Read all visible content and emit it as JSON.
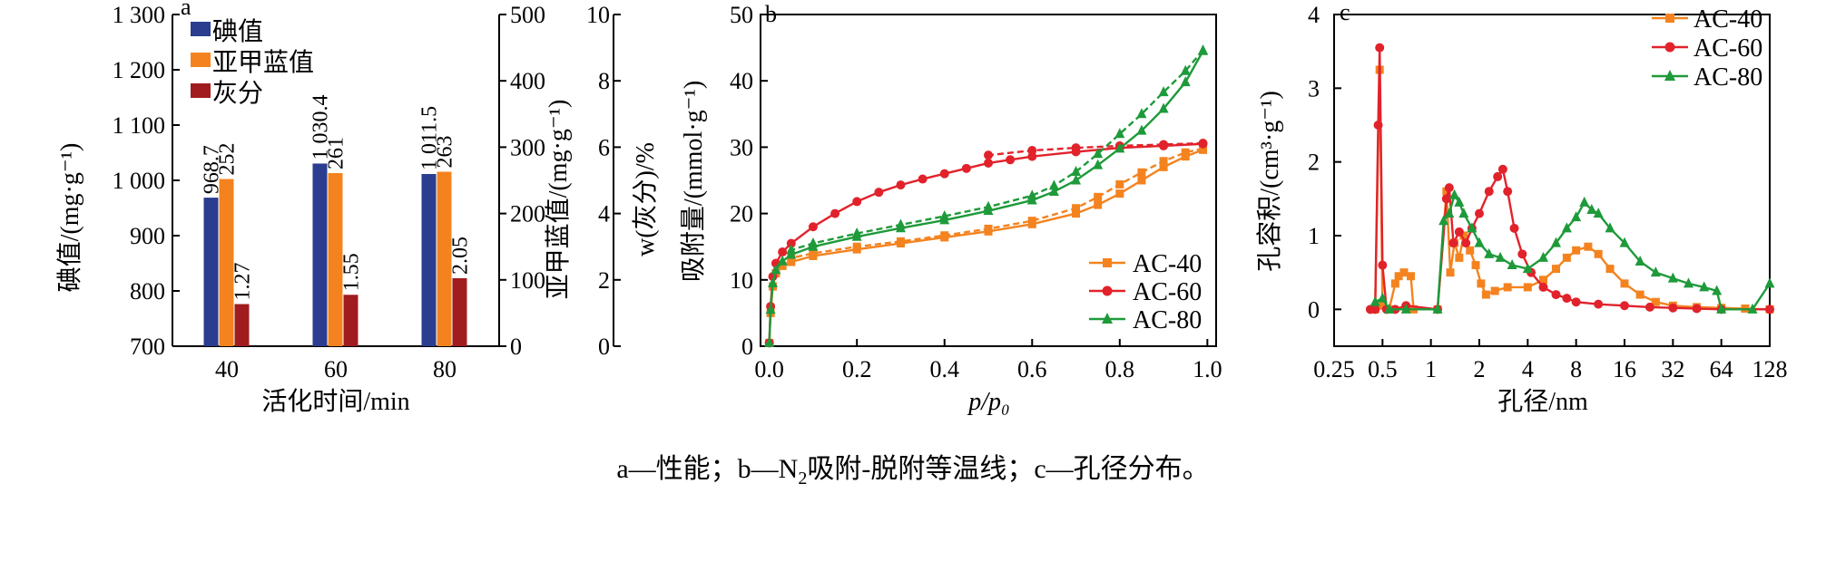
{
  "caption": {
    "part_a": "a—性能；b—N",
    "sub": "2",
    "part_b": "吸附-脱附等温线；c—孔径分布。"
  },
  "chart_data": [
    {
      "panel": "a",
      "type": "bar",
      "xlabel": "活化时间/min",
      "categories": [
        "40",
        "60",
        "80"
      ],
      "legend_position": "top-left",
      "series": [
        {
          "name": "碘值",
          "values": [
            968.7,
            1030.4,
            1011.5
          ],
          "labels": [
            "968.7",
            "1 030.4",
            "1 011.5"
          ],
          "axis": "y1",
          "color": "#2a3d8f"
        },
        {
          "name": "亚甲蓝值",
          "values": [
            252,
            261,
            263
          ],
          "labels": [
            "252",
            "261",
            "263"
          ],
          "axis": "y2",
          "color": "#f4831f"
        },
        {
          "name": "灰分",
          "values": [
            1.27,
            1.55,
            2.05
          ],
          "labels": [
            "1.27",
            "1.55",
            "2.05"
          ],
          "axis": "y3",
          "color": "#a01c1f"
        }
      ],
      "axes": {
        "y1": {
          "label": "碘值/(mg·g⁻¹)",
          "range": [
            700,
            1300
          ],
          "ticks": [
            700,
            800,
            900,
            1000,
            1100,
            1200,
            1300
          ],
          "tick_labels": [
            "700",
            "800",
            "900",
            "1 000",
            "1 100",
            "1 200",
            "1 300"
          ]
        },
        "y2": {
          "label": "亚甲蓝值/(mg·g⁻¹)",
          "range": [
            0,
            500
          ],
          "ticks": [
            0,
            100,
            200,
            300,
            400,
            500
          ],
          "tick_labels": [
            "0",
            "100",
            "200",
            "300",
            "400",
            "500"
          ]
        },
        "y3": {
          "label": "w(灰分)/%",
          "range": [
            0,
            10
          ],
          "ticks": [
            0,
            2,
            4,
            6,
            8,
            10
          ],
          "tick_labels": [
            "0",
            "2",
            "4",
            "6",
            "8",
            "10"
          ]
        }
      }
    },
    {
      "panel": "b",
      "type": "line",
      "xlabel": "p/p₀",
      "ylabel": "吸附量/(mmol·g⁻¹)",
      "xlim": [
        -0.02,
        1.02
      ],
      "ylim": [
        0,
        50
      ],
      "xticks": [
        0.0,
        0.2,
        0.4,
        0.6,
        0.8,
        1.0
      ],
      "xtick_labels": [
        "0.0",
        "0.2",
        "0.4",
        "0.6",
        "0.8",
        "1.0"
      ],
      "yticks": [
        0,
        10,
        20,
        30,
        40,
        50
      ],
      "ytick_labels": [
        "0",
        "10",
        "20",
        "30",
        "40",
        "50"
      ],
      "legend_position": "bottom-right",
      "series": [
        {
          "name": "AC-40",
          "color": "#f4831f",
          "marker": "square",
          "adsorption": [
            [
              0.0,
              0.5
            ],
            [
              0.003,
              5
            ],
            [
              0.008,
              9
            ],
            [
              0.015,
              11
            ],
            [
              0.03,
              12.1
            ],
            [
              0.05,
              12.7
            ],
            [
              0.1,
              13.6
            ],
            [
              0.2,
              14.6
            ],
            [
              0.3,
              15.5
            ],
            [
              0.4,
              16.4
            ],
            [
              0.5,
              17.3
            ],
            [
              0.6,
              18.4
            ],
            [
              0.7,
              20.0
            ],
            [
              0.75,
              21.3
            ],
            [
              0.8,
              23.0
            ],
            [
              0.85,
              25.0
            ],
            [
              0.9,
              27.0
            ],
            [
              0.95,
              28.6
            ],
            [
              0.99,
              29.6
            ]
          ],
          "desorption": [
            [
              0.99,
              29.8
            ],
            [
              0.95,
              29.2
            ],
            [
              0.9,
              27.9
            ],
            [
              0.85,
              26.2
            ],
            [
              0.8,
              24.4
            ],
            [
              0.75,
              22.5
            ],
            [
              0.7,
              20.8
            ],
            [
              0.6,
              18.9
            ],
            [
              0.5,
              17.7
            ],
            [
              0.4,
              16.7
            ],
            [
              0.3,
              15.8
            ],
            [
              0.2,
              15.0
            ],
            [
              0.1,
              14.0
            ],
            [
              0.05,
              13.3
            ]
          ]
        },
        {
          "name": "AC-60",
          "color": "#e2222b",
          "marker": "circle",
          "adsorption": [
            [
              0.0,
              0.5
            ],
            [
              0.003,
              6
            ],
            [
              0.008,
              10.5
            ],
            [
              0.015,
              12.5
            ],
            [
              0.03,
              14.2
            ],
            [
              0.05,
              15.5
            ],
            [
              0.1,
              18.0
            ],
            [
              0.15,
              20.0
            ],
            [
              0.2,
              21.8
            ],
            [
              0.25,
              23.2
            ],
            [
              0.3,
              24.3
            ],
            [
              0.35,
              25.2
            ],
            [
              0.4,
              26.0
            ],
            [
              0.45,
              26.8
            ],
            [
              0.5,
              27.6
            ],
            [
              0.55,
              28.1
            ],
            [
              0.6,
              28.6
            ],
            [
              0.7,
              29.3
            ],
            [
              0.8,
              29.9
            ],
            [
              0.9,
              30.2
            ],
            [
              0.99,
              30.5
            ]
          ],
          "desorption": [
            [
              0.99,
              30.6
            ],
            [
              0.9,
              30.4
            ],
            [
              0.8,
              30.2
            ],
            [
              0.7,
              29.9
            ],
            [
              0.6,
              29.5
            ],
            [
              0.5,
              28.8
            ]
          ]
        },
        {
          "name": "AC-80",
          "color": "#1e9a3a",
          "marker": "triangle",
          "adsorption": [
            [
              0.0,
              0.5
            ],
            [
              0.003,
              5.5
            ],
            [
              0.008,
              9.5
            ],
            [
              0.015,
              11.5
            ],
            [
              0.03,
              12.8
            ],
            [
              0.05,
              13.8
            ],
            [
              0.1,
              15.0
            ],
            [
              0.2,
              16.5
            ],
            [
              0.3,
              17.8
            ],
            [
              0.4,
              19.0
            ],
            [
              0.5,
              20.4
            ],
            [
              0.6,
              22.0
            ],
            [
              0.65,
              23.3
            ],
            [
              0.7,
              25.0
            ],
            [
              0.75,
              27.3
            ],
            [
              0.8,
              29.8
            ],
            [
              0.85,
              32.5
            ],
            [
              0.9,
              35.8
            ],
            [
              0.95,
              39.8
            ],
            [
              0.99,
              44.5
            ]
          ],
          "desorption": [
            [
              0.99,
              44.6
            ],
            [
              0.95,
              41.5
            ],
            [
              0.9,
              38.3
            ],
            [
              0.85,
              35.0
            ],
            [
              0.8,
              32.0
            ],
            [
              0.75,
              29.0
            ],
            [
              0.7,
              26.3
            ],
            [
              0.65,
              24.2
            ],
            [
              0.6,
              22.7
            ],
            [
              0.5,
              21.0
            ],
            [
              0.4,
              19.6
            ],
            [
              0.3,
              18.3
            ],
            [
              0.2,
              17.0
            ],
            [
              0.1,
              15.5
            ],
            [
              0.05,
              14.5
            ]
          ]
        }
      ]
    },
    {
      "panel": "c",
      "type": "line",
      "xlabel": "孔径/nm",
      "ylabel": "孔容积/(cm³·g⁻¹)",
      "xscale": "log2",
      "xlim": [
        0.25,
        128
      ],
      "ylim": [
        -0.5,
        4
      ],
      "xticks": [
        0.25,
        0.5,
        1,
        2,
        4,
        8,
        16,
        32,
        64,
        128
      ],
      "xtick_labels": [
        "0.25",
        "0.5",
        "1",
        "2",
        "4",
        "8",
        "16",
        "32",
        "64",
        "128"
      ],
      "yticks": [
        0,
        1,
        2,
        3,
        4
      ],
      "ytick_labels": [
        "0",
        "1",
        "2",
        "3",
        "4"
      ],
      "legend_position": "top-right",
      "series": [
        {
          "name": "AC-40",
          "color": "#f4831f",
          "marker": "square",
          "points": [
            [
              0.45,
              0
            ],
            [
              0.48,
              3.25
            ],
            [
              0.5,
              0.05
            ],
            [
              0.55,
              0
            ],
            [
              0.6,
              0.35
            ],
            [
              0.63,
              0.45
            ],
            [
              0.68,
              0.5
            ],
            [
              0.75,
              0.45
            ],
            [
              0.78,
              0
            ],
            [
              1.1,
              0
            ],
            [
              1.25,
              1.6
            ],
            [
              1.32,
              0.5
            ],
            [
              1.4,
              0.9
            ],
            [
              1.5,
              0.7
            ],
            [
              1.6,
              1.0
            ],
            [
              1.75,
              0.8
            ],
            [
              1.9,
              0.6
            ],
            [
              2.05,
              0.35
            ],
            [
              2.2,
              0.2
            ],
            [
              2.5,
              0.25
            ],
            [
              3.0,
              0.3
            ],
            [
              4.0,
              0.3
            ],
            [
              5.0,
              0.4
            ],
            [
              6.0,
              0.55
            ],
            [
              7.0,
              0.7
            ],
            [
              8.0,
              0.8
            ],
            [
              9.5,
              0.85
            ],
            [
              11.0,
              0.75
            ],
            [
              13.0,
              0.55
            ],
            [
              16.0,
              0.35
            ],
            [
              20.0,
              0.2
            ],
            [
              25.0,
              0.1
            ],
            [
              32.0,
              0.05
            ],
            [
              45.0,
              0.03
            ],
            [
              64.0,
              0.02
            ],
            [
              90.0,
              0.01
            ],
            [
              128.0,
              0
            ]
          ]
        },
        {
          "name": "AC-60",
          "color": "#e2222b",
          "marker": "circle",
          "points": [
            [
              0.42,
              0
            ],
            [
              0.45,
              0
            ],
            [
              0.47,
              2.5
            ],
            [
              0.48,
              3.55
            ],
            [
              0.5,
              0.6
            ],
            [
              0.53,
              0
            ],
            [
              0.6,
              0
            ],
            [
              0.7,
              0.05
            ],
            [
              1.1,
              0
            ],
            [
              1.25,
              1.5
            ],
            [
              1.3,
              1.65
            ],
            [
              1.38,
              0.9
            ],
            [
              1.5,
              1.05
            ],
            [
              1.65,
              0.9
            ],
            [
              1.8,
              1.1
            ],
            [
              2.0,
              1.3
            ],
            [
              2.3,
              1.6
            ],
            [
              2.6,
              1.8
            ],
            [
              2.8,
              1.9
            ],
            [
              3.0,
              1.6
            ],
            [
              3.3,
              1.1
            ],
            [
              3.7,
              0.75
            ],
            [
              4.2,
              0.5
            ],
            [
              5.0,
              0.3
            ],
            [
              6.0,
              0.2
            ],
            [
              7.0,
              0.15
            ],
            [
              8.0,
              0.1
            ],
            [
              11.0,
              0.07
            ],
            [
              16.0,
              0.05
            ],
            [
              23.0,
              0.03
            ],
            [
              32.0,
              0.02
            ],
            [
              45.0,
              0.01
            ],
            [
              64.0,
              0
            ],
            [
              128.0,
              0
            ]
          ]
        },
        {
          "name": "AC-80",
          "color": "#1e9a3a",
          "marker": "triangle",
          "points": [
            [
              0.45,
              0.1
            ],
            [
              0.5,
              0.15
            ],
            [
              0.55,
              0
            ],
            [
              0.7,
              0
            ],
            [
              1.1,
              0
            ],
            [
              1.2,
              1.2
            ],
            [
              1.3,
              1.3
            ],
            [
              1.4,
              1.55
            ],
            [
              1.5,
              1.45
            ],
            [
              1.6,
              1.3
            ],
            [
              1.8,
              1.1
            ],
            [
              2.0,
              0.9
            ],
            [
              2.3,
              0.75
            ],
            [
              2.7,
              0.7
            ],
            [
              3.2,
              0.6
            ],
            [
              4.0,
              0.55
            ],
            [
              5.0,
              0.7
            ],
            [
              6.0,
              0.9
            ],
            [
              7.0,
              1.1
            ],
            [
              8.0,
              1.25
            ],
            [
              9.0,
              1.45
            ],
            [
              10.0,
              1.35
            ],
            [
              11.0,
              1.3
            ],
            [
              13.0,
              1.1
            ],
            [
              16.0,
              0.9
            ],
            [
              20.0,
              0.65
            ],
            [
              25.0,
              0.5
            ],
            [
              32.0,
              0.42
            ],
            [
              40.0,
              0.35
            ],
            [
              50.0,
              0.3
            ],
            [
              60.0,
              0.25
            ],
            [
              64.0,
              0
            ],
            [
              100.0,
              0
            ],
            [
              128.0,
              0.35
            ]
          ]
        }
      ]
    }
  ]
}
